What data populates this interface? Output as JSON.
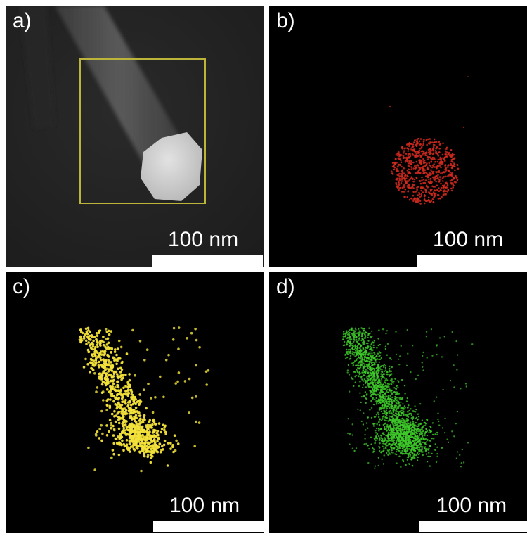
{
  "panels": [
    {
      "label": "a)",
      "scale_bar": "100 nm",
      "image": "HAADF-STEM image of nanowire with nanoparticle tip, yellow selection box"
    },
    {
      "label": "b)",
      "scale_bar": "100 nm",
      "map_color": "#d42a1e",
      "points": 700
    },
    {
      "label": "c)",
      "scale_bar": "100 nm",
      "map_color": "#f2e23a",
      "points": 850
    },
    {
      "label": "d)",
      "scale_bar": "100 nm",
      "map_color": "#3fcc2a",
      "points": 2200
    }
  ],
  "colors": {
    "panel_background": "#000000",
    "stem_background": "#202020",
    "selection_box": "#bdb43a",
    "particle": "#d8d8d8"
  }
}
